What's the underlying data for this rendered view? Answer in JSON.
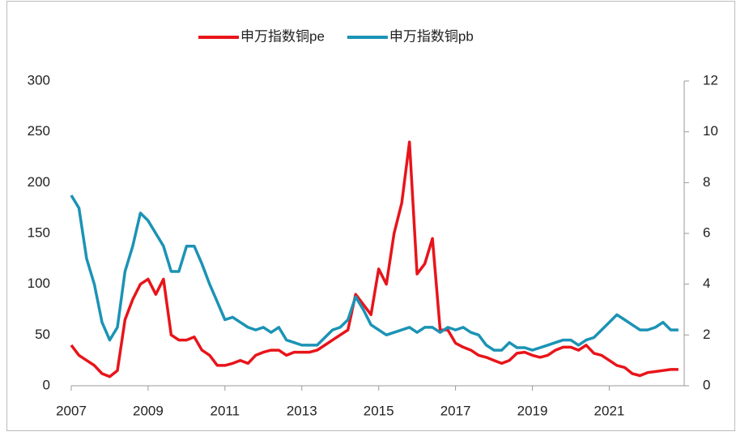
{
  "chart_data": {
    "type": "line",
    "x": [
      2007.0,
      2007.2,
      2007.4,
      2007.6,
      2007.8,
      2008.0,
      2008.2,
      2008.4,
      2008.6,
      2008.8,
      2009.0,
      2009.2,
      2009.4,
      2009.6,
      2009.8,
      2010.0,
      2010.2,
      2010.4,
      2010.6,
      2010.8,
      2011.0,
      2011.2,
      2011.4,
      2011.6,
      2011.8,
      2012.0,
      2012.2,
      2012.4,
      2012.6,
      2012.8,
      2013.0,
      2013.2,
      2013.4,
      2013.6,
      2013.8,
      2014.0,
      2014.2,
      2014.4,
      2014.6,
      2014.8,
      2015.0,
      2015.2,
      2015.4,
      2015.6,
      2015.8,
      2016.0,
      2016.2,
      2016.4,
      2016.6,
      2016.8,
      2017.0,
      2017.2,
      2017.4,
      2017.6,
      2017.8,
      2018.0,
      2018.2,
      2018.4,
      2018.6,
      2018.8,
      2019.0,
      2019.2,
      2019.4,
      2019.6,
      2019.8,
      2020.0,
      2020.2,
      2020.4,
      2020.6,
      2020.8,
      2021.0,
      2021.2,
      2021.4,
      2021.6,
      2021.8,
      2022.0,
      2022.2,
      2022.4,
      2022.6,
      2022.8
    ],
    "series": [
      {
        "name": "申万指数铜pe",
        "color": "#e8141a",
        "values": [
          40,
          30,
          25,
          20,
          12,
          9,
          15,
          65,
          85,
          100,
          105,
          90,
          105,
          50,
          45,
          45,
          48,
          35,
          30,
          20,
          20,
          22,
          25,
          22,
          30,
          33,
          35,
          35,
          30,
          33,
          33,
          33,
          35,
          40,
          45,
          50,
          55,
          90,
          80,
          70,
          115,
          100,
          150,
          180,
          240,
          110,
          120,
          145,
          55,
          55,
          42,
          38,
          35,
          30,
          28,
          25,
          22,
          25,
          32,
          33,
          30,
          28,
          30,
          35,
          38,
          38,
          35,
          40,
          32,
          30,
          25,
          20,
          18,
          12,
          10,
          13,
          14,
          15,
          16,
          16
        ]
      },
      {
        "name": "申万指数铜pb",
        "color": "#1b93b5",
        "axis": "y2",
        "values": [
          7.5,
          7,
          5,
          4,
          2.5,
          1.8,
          2.3,
          4.5,
          5.5,
          6.8,
          6.5,
          6,
          5.5,
          4.5,
          4.5,
          5.5,
          5.5,
          4.8,
          4,
          3.3,
          2.6,
          2.7,
          2.5,
          2.3,
          2.2,
          2.3,
          2.1,
          2.3,
          1.8,
          1.7,
          1.6,
          1.6,
          1.6,
          1.9,
          2.2,
          2.3,
          2.6,
          3.5,
          3.0,
          2.4,
          2.2,
          2.0,
          2.1,
          2.2,
          2.3,
          2.1,
          2.3,
          2.3,
          2.1,
          2.3,
          2.2,
          2.3,
          2.1,
          2.0,
          1.6,
          1.4,
          1.4,
          1.7,
          1.5,
          1.5,
          1.4,
          1.5,
          1.6,
          1.7,
          1.8,
          1.8,
          1.6,
          1.8,
          1.9,
          2.2,
          2.5,
          2.8,
          2.6,
          2.4,
          2.2,
          2.2,
          2.3,
          2.5,
          2.2,
          2.2
        ]
      }
    ],
    "xlim": [
      2007,
      2022.95
    ],
    "xticks": [
      2007,
      2009,
      2011,
      2013,
      2015,
      2017,
      2019,
      2021
    ],
    "ylim": [
      0,
      300
    ],
    "yticks": [
      0,
      50,
      100,
      150,
      200,
      250,
      300
    ],
    "y2lim": [
      0,
      12
    ],
    "y2ticks": [
      0,
      2,
      4,
      6,
      8,
      10,
      12
    ],
    "legend": "top"
  }
}
